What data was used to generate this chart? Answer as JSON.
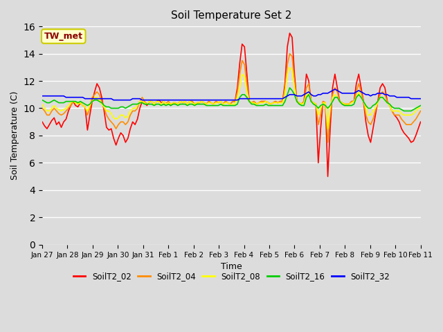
{
  "title": "Soil Temperature Set 2",
  "xlabel": "Time",
  "ylabel": "Soil Temperature (C)",
  "bg_color": "#dcdcdc",
  "ylim": [
    0,
    16
  ],
  "yticks": [
    0,
    2,
    4,
    6,
    8,
    10,
    12,
    14,
    16
  ],
  "annotation_text": "TW_met",
  "annotation_color": "#8b0000",
  "annotation_bg": "#ffffcc",
  "annotation_edge": "#cccc00",
  "line_colors": {
    "SoilT2_02": "#ff0000",
    "SoilT2_04": "#ff8c00",
    "SoilT2_08": "#ffff00",
    "SoilT2_16": "#00cc00",
    "SoilT2_32": "#0000ff"
  },
  "line_width": 1.2,
  "xtick_labels": [
    "Jan 27",
    "Jan 28",
    "Jan 29",
    "Jan 30",
    "Jan 31",
    "Feb 1",
    "Feb 2",
    "Feb 3",
    "Feb 4",
    "Feb 5",
    "Feb 6",
    "Feb 7",
    "Feb 8",
    "Feb 9",
    "Feb 10",
    "Feb 11"
  ],
  "SoilT2_02": [
    9.0,
    8.7,
    8.5,
    8.8,
    9.1,
    9.3,
    8.8,
    9.0,
    8.6,
    9.0,
    9.2,
    9.8,
    10.2,
    10.5,
    10.2,
    10.1,
    10.4,
    10.2,
    10.1,
    8.4,
    9.5,
    10.5,
    11.2,
    11.8,
    11.5,
    10.8,
    9.8,
    8.6,
    8.4,
    8.5,
    7.8,
    7.3,
    7.8,
    8.2,
    8.0,
    7.5,
    7.8,
    8.5,
    9.0,
    8.8,
    9.2,
    10.0,
    10.5,
    10.4,
    10.2,
    10.5,
    10.5,
    10.3,
    10.5,
    10.6,
    10.4,
    10.5,
    10.3,
    10.5,
    10.2,
    10.4,
    10.4,
    10.3,
    10.5,
    10.4,
    10.5,
    10.3,
    10.5,
    10.5,
    10.3,
    10.4,
    10.4,
    10.5,
    10.4,
    10.3,
    10.5,
    10.4,
    10.3,
    10.5,
    10.4,
    10.5,
    10.3,
    10.5,
    10.4,
    10.3,
    10.5,
    10.5,
    11.5,
    13.3,
    14.7,
    14.5,
    12.5,
    10.5,
    10.4,
    10.5,
    10.3,
    10.4,
    10.5,
    10.5,
    10.5,
    10.4,
    10.3,
    10.4,
    10.5,
    10.4,
    10.5,
    10.5,
    11.8,
    14.5,
    15.5,
    15.2,
    12.5,
    10.5,
    10.4,
    10.3,
    10.5,
    12.5,
    12.0,
    10.5,
    10.4,
    10.3,
    6.0,
    8.5,
    10.5,
    10.4,
    5.0,
    8.5,
    11.5,
    12.5,
    11.5,
    10.5,
    10.4,
    10.3,
    10.3,
    10.3,
    10.5,
    10.5,
    11.8,
    12.5,
    11.5,
    10.5,
    9.0,
    8.0,
    7.5,
    8.5,
    9.5,
    10.5,
    11.5,
    11.8,
    11.5,
    10.5,
    10.2,
    9.8,
    9.5,
    9.3,
    9.0,
    8.5,
    8.2,
    8.0,
    7.8,
    7.5,
    7.6,
    8.0,
    8.5,
    9.0
  ],
  "SoilT2_04": [
    10.0,
    9.8,
    9.5,
    9.5,
    9.8,
    10.0,
    9.8,
    9.6,
    9.5,
    9.6,
    9.8,
    10.0,
    10.2,
    10.5,
    10.4,
    10.3,
    10.4,
    10.2,
    10.1,
    9.5,
    10.0,
    10.8,
    11.0,
    11.2,
    11.0,
    10.5,
    10.0,
    9.5,
    9.2,
    9.0,
    8.8,
    8.5,
    8.8,
    9.0,
    9.0,
    8.8,
    9.0,
    9.5,
    9.8,
    9.8,
    10.0,
    10.5,
    10.8,
    10.5,
    10.3,
    10.5,
    10.5,
    10.3,
    10.5,
    10.5,
    10.3,
    10.5,
    10.3,
    10.5,
    10.3,
    10.4,
    10.4,
    10.3,
    10.5,
    10.4,
    10.5,
    10.3,
    10.5,
    10.5,
    10.3,
    10.4,
    10.4,
    10.5,
    10.4,
    10.3,
    10.5,
    10.4,
    10.3,
    10.5,
    10.4,
    10.5,
    10.3,
    10.5,
    10.4,
    10.3,
    10.5,
    10.5,
    11.2,
    12.5,
    13.5,
    13.2,
    11.8,
    10.5,
    10.4,
    10.5,
    10.3,
    10.4,
    10.5,
    10.5,
    10.5,
    10.4,
    10.3,
    10.4,
    10.5,
    10.4,
    10.5,
    10.5,
    11.5,
    13.2,
    14.0,
    13.8,
    12.0,
    10.5,
    10.4,
    10.3,
    10.5,
    11.5,
    11.8,
    10.5,
    10.4,
    10.3,
    8.8,
    9.5,
    10.5,
    10.4,
    7.5,
    9.5,
    11.0,
    11.5,
    11.2,
    10.5,
    10.4,
    10.3,
    10.3,
    10.3,
    10.5,
    10.5,
    11.2,
    11.8,
    11.2,
    10.5,
    9.5,
    9.0,
    8.8,
    9.2,
    9.8,
    10.5,
    11.0,
    11.2,
    11.0,
    10.5,
    10.2,
    9.8,
    9.5,
    9.5,
    9.5,
    9.2,
    9.0,
    8.8,
    8.8,
    8.8,
    9.0,
    9.2,
    9.5,
    9.8
  ],
  "SoilT2_08": [
    10.3,
    10.0,
    9.8,
    9.8,
    10.0,
    10.2,
    10.0,
    9.9,
    9.8,
    9.9,
    10.0,
    10.2,
    10.4,
    10.5,
    10.4,
    10.3,
    10.4,
    10.2,
    10.1,
    9.8,
    10.2,
    10.5,
    10.8,
    10.8,
    10.6,
    10.3,
    10.1,
    9.8,
    9.8,
    9.6,
    9.3,
    9.2,
    9.3,
    9.5,
    9.5,
    9.3,
    9.4,
    9.8,
    10.0,
    10.0,
    10.2,
    10.5,
    10.5,
    10.4,
    10.3,
    10.5,
    10.5,
    10.3,
    10.5,
    10.5,
    10.3,
    10.5,
    10.3,
    10.4,
    10.3,
    10.4,
    10.4,
    10.3,
    10.5,
    10.4,
    10.5,
    10.3,
    10.5,
    10.4,
    10.3,
    10.4,
    10.4,
    10.5,
    10.4,
    10.3,
    10.4,
    10.4,
    10.3,
    10.4,
    10.4,
    10.5,
    10.3,
    10.4,
    10.4,
    10.3,
    10.3,
    10.3,
    10.8,
    11.5,
    12.5,
    12.3,
    11.2,
    10.5,
    10.4,
    10.4,
    10.3,
    10.4,
    10.4,
    10.4,
    10.5,
    10.4,
    10.3,
    10.4,
    10.4,
    10.4,
    10.4,
    10.4,
    11.0,
    12.5,
    13.0,
    12.8,
    11.5,
    10.5,
    10.4,
    10.3,
    10.4,
    11.0,
    11.2,
    10.5,
    10.4,
    10.3,
    9.5,
    10.0,
    10.4,
    10.4,
    8.5,
    10.0,
    10.8,
    11.0,
    10.8,
    10.5,
    10.4,
    10.3,
    10.3,
    10.3,
    10.4,
    10.5,
    10.8,
    11.2,
    10.8,
    10.5,
    10.0,
    9.5,
    9.5,
    9.8,
    10.0,
    10.4,
    10.8,
    10.8,
    10.6,
    10.4,
    10.2,
    9.8,
    9.8,
    9.8,
    9.8,
    9.6,
    9.5,
    9.5,
    9.5,
    9.5,
    9.6,
    9.8,
    10.0,
    10.0
  ],
  "SoilT2_16": [
    10.6,
    10.5,
    10.4,
    10.4,
    10.5,
    10.6,
    10.5,
    10.4,
    10.4,
    10.4,
    10.5,
    10.5,
    10.5,
    10.5,
    10.5,
    10.4,
    10.5,
    10.4,
    10.3,
    10.2,
    10.3,
    10.5,
    10.6,
    10.6,
    10.5,
    10.4,
    10.2,
    10.1,
    10.1,
    10.0,
    10.0,
    10.0,
    10.0,
    10.1,
    10.1,
    10.0,
    10.1,
    10.2,
    10.3,
    10.3,
    10.3,
    10.4,
    10.4,
    10.3,
    10.3,
    10.3,
    10.3,
    10.2,
    10.3,
    10.3,
    10.2,
    10.3,
    10.2,
    10.3,
    10.2,
    10.3,
    10.3,
    10.2,
    10.3,
    10.3,
    10.3,
    10.2,
    10.3,
    10.3,
    10.2,
    10.3,
    10.3,
    10.3,
    10.3,
    10.2,
    10.2,
    10.2,
    10.2,
    10.2,
    10.2,
    10.3,
    10.2,
    10.2,
    10.2,
    10.2,
    10.2,
    10.2,
    10.3,
    10.8,
    11.0,
    11.0,
    10.8,
    10.5,
    10.3,
    10.3,
    10.2,
    10.2,
    10.2,
    10.2,
    10.3,
    10.2,
    10.2,
    10.2,
    10.2,
    10.2,
    10.2,
    10.2,
    10.5,
    11.0,
    11.5,
    11.3,
    11.0,
    10.5,
    10.3,
    10.2,
    10.2,
    10.8,
    11.0,
    10.5,
    10.3,
    10.2,
    10.0,
    10.2,
    10.3,
    10.2,
    10.0,
    10.2,
    10.5,
    10.8,
    10.8,
    10.5,
    10.3,
    10.2,
    10.2,
    10.2,
    10.2,
    10.3,
    10.8,
    11.0,
    10.8,
    10.5,
    10.2,
    10.0,
    10.0,
    10.2,
    10.3,
    10.5,
    10.8,
    10.8,
    10.6,
    10.4,
    10.3,
    10.1,
    10.0,
    10.0,
    10.0,
    9.9,
    9.8,
    9.8,
    9.8,
    9.8,
    9.9,
    10.0,
    10.1,
    10.2
  ],
  "SoilT2_32": [
    10.9,
    10.9,
    10.9,
    10.9,
    10.9,
    10.9,
    10.9,
    10.9,
    10.9,
    10.9,
    10.8,
    10.8,
    10.8,
    10.8,
    10.8,
    10.8,
    10.8,
    10.8,
    10.7,
    10.7,
    10.7,
    10.7,
    10.7,
    10.7,
    10.7,
    10.7,
    10.7,
    10.7,
    10.7,
    10.7,
    10.6,
    10.6,
    10.6,
    10.6,
    10.6,
    10.6,
    10.6,
    10.6,
    10.7,
    10.7,
    10.7,
    10.7,
    10.6,
    10.6,
    10.6,
    10.6,
    10.6,
    10.6,
    10.6,
    10.6,
    10.6,
    10.6,
    10.6,
    10.6,
    10.6,
    10.6,
    10.6,
    10.6,
    10.6,
    10.6,
    10.6,
    10.6,
    10.6,
    10.6,
    10.6,
    10.6,
    10.6,
    10.6,
    10.6,
    10.6,
    10.6,
    10.6,
    10.6,
    10.6,
    10.6,
    10.6,
    10.6,
    10.6,
    10.6,
    10.6,
    10.6,
    10.6,
    10.6,
    10.7,
    10.7,
    10.7,
    10.7,
    10.7,
    10.7,
    10.7,
    10.7,
    10.7,
    10.7,
    10.7,
    10.7,
    10.7,
    10.7,
    10.7,
    10.7,
    10.7,
    10.7,
    10.7,
    10.8,
    10.9,
    11.0,
    11.0,
    11.0,
    10.9,
    10.9,
    10.9,
    11.0,
    11.1,
    11.2,
    11.0,
    10.9,
    10.9,
    11.0,
    11.0,
    11.1,
    11.1,
    11.1,
    11.2,
    11.3,
    11.4,
    11.3,
    11.2,
    11.1,
    11.1,
    11.1,
    11.1,
    11.1,
    11.1,
    11.2,
    11.3,
    11.2,
    11.1,
    11.0,
    11.0,
    10.9,
    11.0,
    11.0,
    11.1,
    11.1,
    11.1,
    11.0,
    11.0,
    10.9,
    10.9,
    10.9,
    10.8,
    10.8,
    10.8,
    10.8,
    10.8,
    10.8,
    10.7,
    10.7,
    10.7,
    10.7,
    10.7
  ]
}
